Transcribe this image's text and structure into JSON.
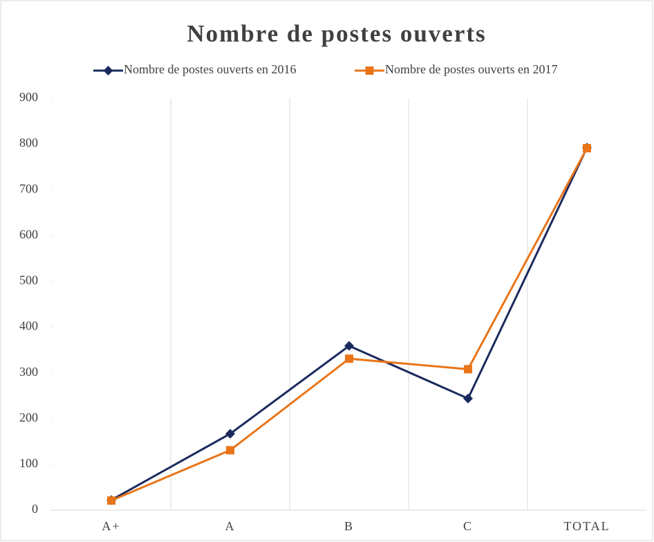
{
  "chart_data": {
    "type": "line",
    "title": "Nombre de postes ouverts",
    "categories": [
      "A+",
      "A",
      "B",
      "C",
      "TOTAL"
    ],
    "series": [
      {
        "name": "Nombre de postes ouverts en 2016",
        "color": "#1b2a5e",
        "marker": "diamond",
        "values": [
          22,
          167,
          359,
          244,
          792
        ]
      },
      {
        "name": "Nombre de postes ouverts en 2017",
        "color": "#e8751a",
        "marker": "square",
        "values": [
          21,
          131,
          331,
          308,
          791
        ]
      }
    ],
    "ylim": [
      0,
      900
    ],
    "yticks": [
      0,
      100,
      200,
      300,
      400,
      500,
      600,
      700,
      800,
      900
    ],
    "legend": "top"
  }
}
